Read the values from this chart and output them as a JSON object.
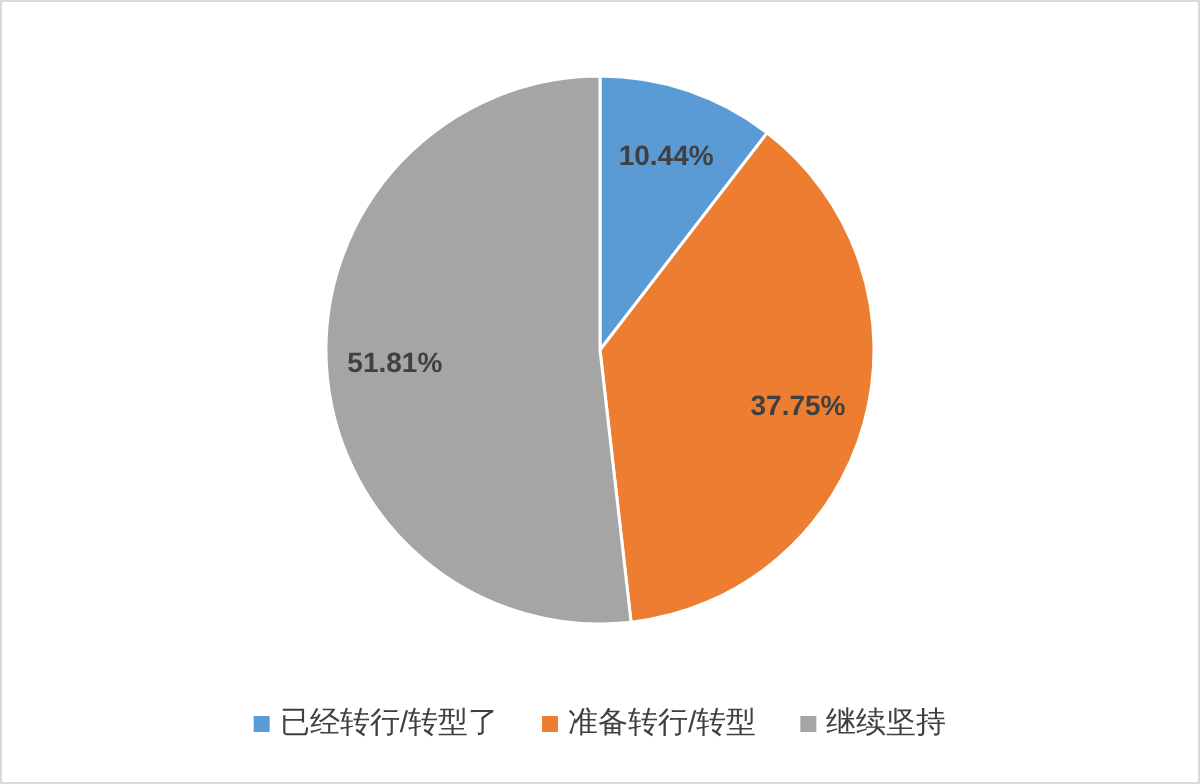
{
  "chart_data": {
    "type": "pie",
    "categories": [
      "已经转行/转型了",
      "准备转行/转型",
      "继续坚持"
    ],
    "values": [
      10.44,
      37.75,
      51.81
    ],
    "colors": [
      "#5b9bd5",
      "#ed7d31",
      "#a5a5a5"
    ],
    "value_labels": [
      "10.44%",
      "37.75%",
      "51.81%"
    ],
    "legend": "bottom"
  }
}
